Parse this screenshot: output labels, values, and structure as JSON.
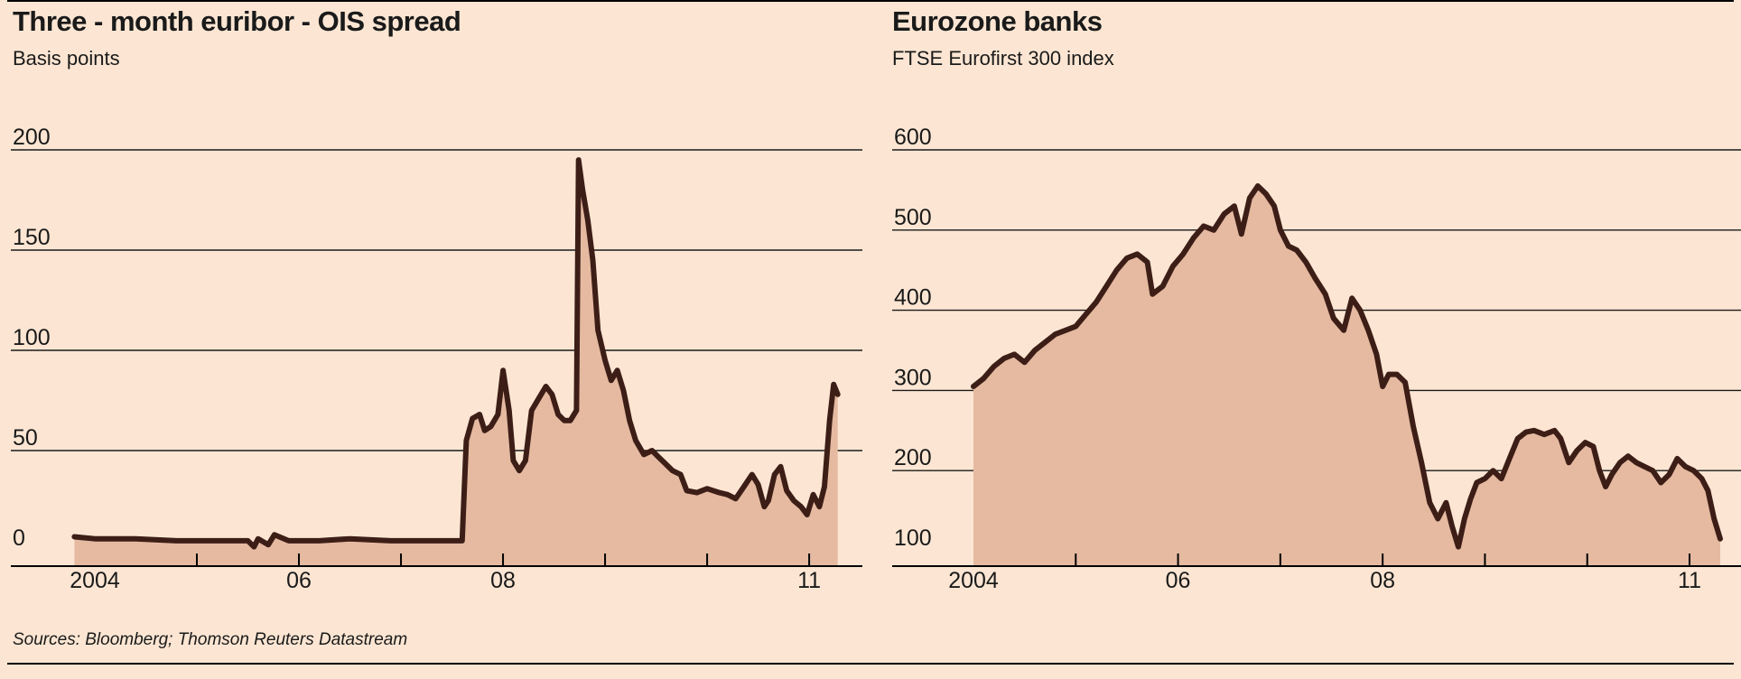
{
  "source": "Sources: Bloomberg; Thomson Reuters Datastream",
  "colors": {
    "background": "#fce6d3",
    "line": "#3d1e17",
    "area": "#e5baa1",
    "gridline": "#1a1a1a"
  },
  "chart_data": [
    {
      "type": "area",
      "title": "Three - month euribor - OIS spread",
      "subtitle": "Basis points",
      "ylim": [
        0,
        200
      ],
      "yticks": [
        "0",
        "50",
        "100",
        "150",
        "200"
      ],
      "xlim": [
        2004.0,
        2011.3
      ],
      "xticks": [
        {
          "label": "2004",
          "at": 2004.0
        },
        {
          "label": "06",
          "at": 2006.0
        },
        {
          "label": "08",
          "at": 2008.0
        },
        {
          "label": "11",
          "at": 2011.0
        }
      ],
      "grid": true,
      "series": [
        {
          "points": [
            [
              2003.8,
              7
            ],
            [
              2004.0,
              6
            ],
            [
              2004.4,
              6
            ],
            [
              2004.8,
              5
            ],
            [
              2005.2,
              5
            ],
            [
              2005.5,
              5
            ],
            [
              2005.56,
              2
            ],
            [
              2005.6,
              6
            ],
            [
              2005.7,
              3
            ],
            [
              2005.76,
              8
            ],
            [
              2005.9,
              5
            ],
            [
              2006.2,
              5
            ],
            [
              2006.5,
              6
            ],
            [
              2006.9,
              5
            ],
            [
              2007.3,
              5
            ],
            [
              2007.55,
              5
            ],
            [
              2007.6,
              5
            ],
            [
              2007.64,
              55
            ],
            [
              2007.7,
              66
            ],
            [
              2007.77,
              68
            ],
            [
              2007.82,
              60
            ],
            [
              2007.88,
              62
            ],
            [
              2007.95,
              68
            ],
            [
              2008.0,
              90
            ],
            [
              2008.06,
              70
            ],
            [
              2008.1,
              45
            ],
            [
              2008.16,
              40
            ],
            [
              2008.22,
              45
            ],
            [
              2008.28,
              70
            ],
            [
              2008.35,
              76
            ],
            [
              2008.42,
              82
            ],
            [
              2008.48,
              78
            ],
            [
              2008.54,
              68
            ],
            [
              2008.6,
              65
            ],
            [
              2008.66,
              65
            ],
            [
              2008.72,
              70
            ],
            [
              2008.74,
              195
            ],
            [
              2008.78,
              180
            ],
            [
              2008.83,
              165
            ],
            [
              2008.88,
              145
            ],
            [
              2008.93,
              110
            ],
            [
              2009.0,
              95
            ],
            [
              2009.06,
              85
            ],
            [
              2009.12,
              90
            ],
            [
              2009.18,
              80
            ],
            [
              2009.24,
              65
            ],
            [
              2009.3,
              55
            ],
            [
              2009.38,
              48
            ],
            [
              2009.46,
              50
            ],
            [
              2009.52,
              47
            ],
            [
              2009.58,
              44
            ],
            [
              2009.66,
              40
            ],
            [
              2009.74,
              38
            ],
            [
              2009.8,
              30
            ],
            [
              2009.9,
              29
            ],
            [
              2010.0,
              31
            ],
            [
              2010.12,
              29
            ],
            [
              2010.2,
              28
            ],
            [
              2010.28,
              26
            ],
            [
              2010.36,
              32
            ],
            [
              2010.44,
              38
            ],
            [
              2010.5,
              33
            ],
            [
              2010.56,
              22
            ],
            [
              2010.6,
              25
            ],
            [
              2010.66,
              38
            ],
            [
              2010.72,
              42
            ],
            [
              2010.78,
              30
            ],
            [
              2010.85,
              25
            ],
            [
              2010.92,
              22
            ],
            [
              2010.98,
              18
            ],
            [
              2011.04,
              28
            ],
            [
              2011.1,
              22
            ],
            [
              2011.15,
              32
            ],
            [
              2011.2,
              65
            ],
            [
              2011.24,
              83
            ],
            [
              2011.28,
              78
            ]
          ]
        }
      ]
    },
    {
      "type": "area",
      "title": "Eurozone banks",
      "subtitle": "FTSE Eurofirst 300 index",
      "ylim": [
        100,
        600
      ],
      "yticks": [
        "100",
        "200",
        "300",
        "400",
        "500",
        "600"
      ],
      "xlim": [
        2004.0,
        2011.3
      ],
      "xticks": [
        {
          "label": "2004",
          "at": 2004.0
        },
        {
          "label": "06",
          "at": 2006.0
        },
        {
          "label": "08",
          "at": 2008.0
        },
        {
          "label": "11",
          "at": 2011.0
        }
      ],
      "grid": true,
      "series": [
        {
          "points": [
            [
              2004.0,
              305
            ],
            [
              2004.1,
              315
            ],
            [
              2004.2,
              330
            ],
            [
              2004.3,
              340
            ],
            [
              2004.4,
              345
            ],
            [
              2004.5,
              335
            ],
            [
              2004.6,
              350
            ],
            [
              2004.7,
              360
            ],
            [
              2004.8,
              370
            ],
            [
              2004.9,
              375
            ],
            [
              2005.0,
              380
            ],
            [
              2005.1,
              395
            ],
            [
              2005.2,
              410
            ],
            [
              2005.3,
              430
            ],
            [
              2005.4,
              450
            ],
            [
              2005.5,
              465
            ],
            [
              2005.6,
              470
            ],
            [
              2005.7,
              460
            ],
            [
              2005.75,
              420
            ],
            [
              2005.85,
              430
            ],
            [
              2005.95,
              455
            ],
            [
              2006.05,
              470
            ],
            [
              2006.15,
              490
            ],
            [
              2006.25,
              505
            ],
            [
              2006.35,
              500
            ],
            [
              2006.45,
              520
            ],
            [
              2006.55,
              530
            ],
            [
              2006.62,
              495
            ],
            [
              2006.7,
              540
            ],
            [
              2006.78,
              555
            ],
            [
              2006.86,
              545
            ],
            [
              2006.94,
              530
            ],
            [
              2007.0,
              500
            ],
            [
              2007.08,
              480
            ],
            [
              2007.16,
              475
            ],
            [
              2007.25,
              460
            ],
            [
              2007.34,
              440
            ],
            [
              2007.44,
              420
            ],
            [
              2007.52,
              390
            ],
            [
              2007.62,
              375
            ],
            [
              2007.7,
              415
            ],
            [
              2007.78,
              400
            ],
            [
              2007.86,
              375
            ],
            [
              2007.94,
              345
            ],
            [
              2008.0,
              305
            ],
            [
              2008.06,
              320
            ],
            [
              2008.14,
              320
            ],
            [
              2008.22,
              310
            ],
            [
              2008.3,
              255
            ],
            [
              2008.38,
              210
            ],
            [
              2008.46,
              160
            ],
            [
              2008.54,
              140
            ],
            [
              2008.62,
              160
            ],
            [
              2008.68,
              130
            ],
            [
              2008.74,
              105
            ],
            [
              2008.8,
              140
            ],
            [
              2008.86,
              165
            ],
            [
              2008.92,
              185
            ],
            [
              2009.0,
              190
            ],
            [
              2009.08,
              200
            ],
            [
              2009.16,
              190
            ],
            [
              2009.24,
              215
            ],
            [
              2009.32,
              240
            ],
            [
              2009.4,
              248
            ],
            [
              2009.48,
              250
            ],
            [
              2009.58,
              245
            ],
            [
              2009.68,
              250
            ],
            [
              2009.74,
              240
            ],
            [
              2009.82,
              210
            ],
            [
              2009.9,
              225
            ],
            [
              2009.98,
              235
            ],
            [
              2010.06,
              230
            ],
            [
              2010.12,
              200
            ],
            [
              2010.18,
              180
            ],
            [
              2010.24,
              195
            ],
            [
              2010.32,
              210
            ],
            [
              2010.4,
              218
            ],
            [
              2010.48,
              210
            ],
            [
              2010.56,
              205
            ],
            [
              2010.64,
              200
            ],
            [
              2010.72,
              185
            ],
            [
              2010.8,
              195
            ],
            [
              2010.88,
              215
            ],
            [
              2010.96,
              205
            ],
            [
              2011.04,
              200
            ],
            [
              2011.12,
              190
            ],
            [
              2011.18,
              175
            ],
            [
              2011.24,
              140
            ],
            [
              2011.3,
              115
            ]
          ]
        }
      ]
    }
  ]
}
